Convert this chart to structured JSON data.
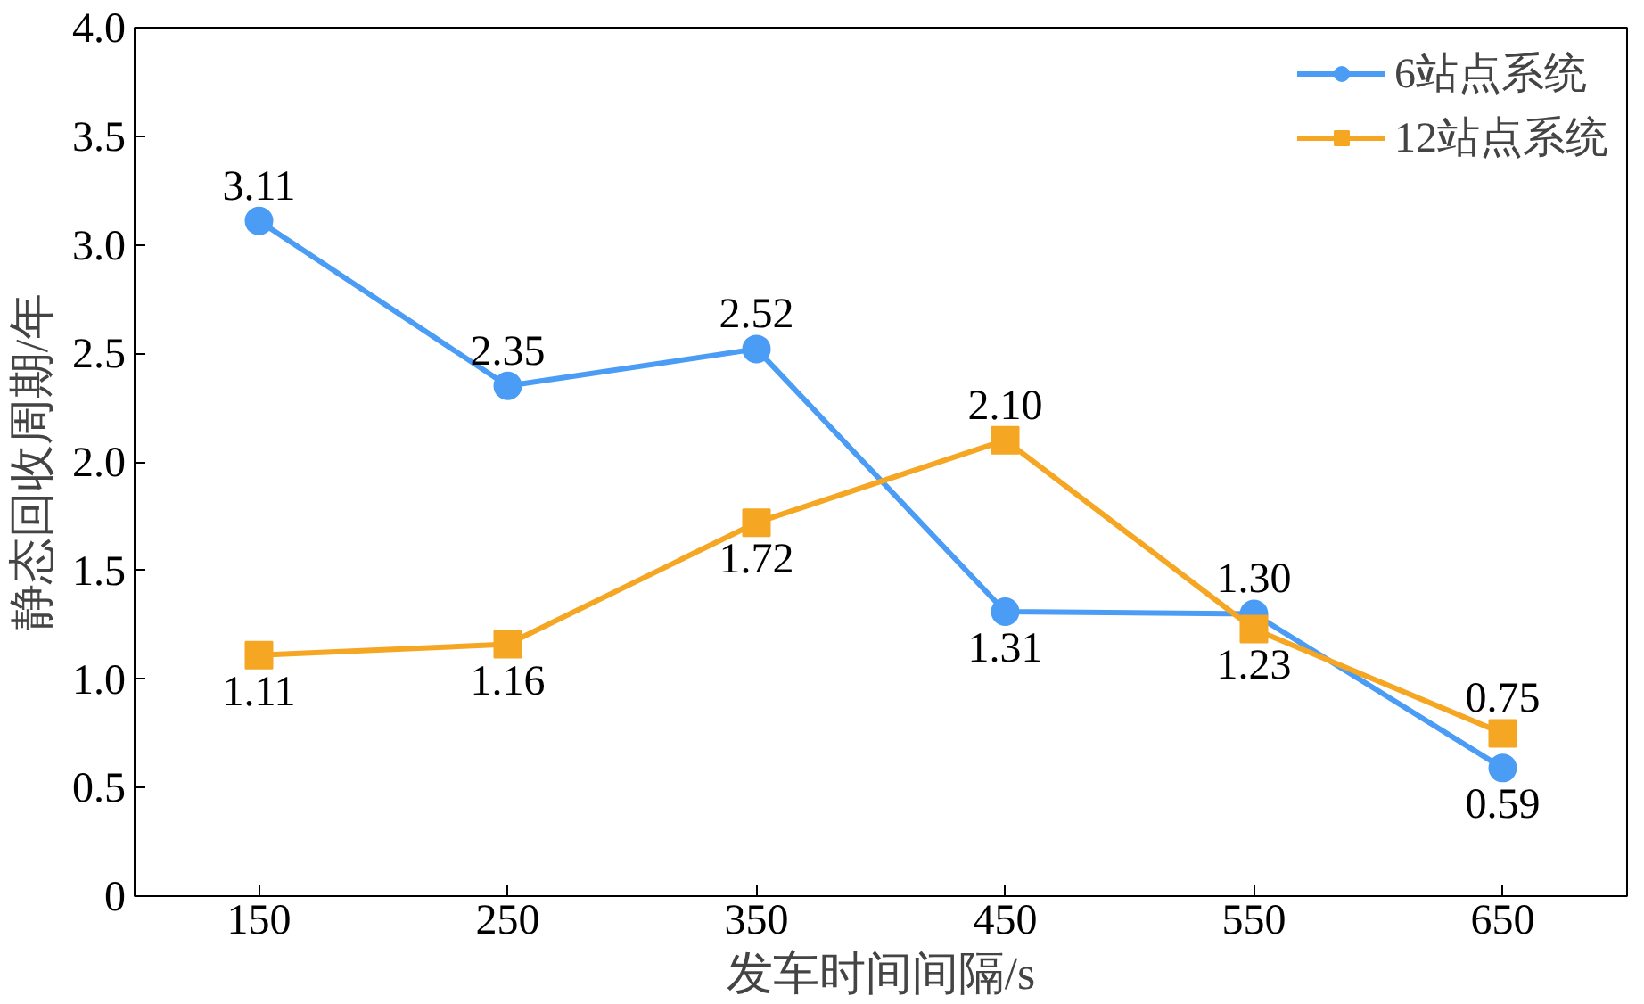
{
  "chart_data": {
    "type": "line",
    "xlabel": "发车时间间隔/s",
    "ylabel": "静态回收周期/年",
    "categories": [
      "150",
      "250",
      "350",
      "450",
      "550",
      "650"
    ],
    "series": [
      {
        "name": "6站点系统",
        "color": "#4b9cf5",
        "marker": "circle",
        "values": [
          3.11,
          2.35,
          2.52,
          1.31,
          1.3,
          0.59
        ],
        "value_labels": [
          "3.11",
          "2.35",
          "2.52",
          "1.31",
          "1.30",
          "0.59"
        ]
      },
      {
        "name": "12站点系统",
        "color": "#f5a623",
        "marker": "square",
        "values": [
          1.11,
          1.16,
          1.72,
          2.1,
          1.23,
          0.75
        ],
        "value_labels": [
          "1.11",
          "1.16",
          "1.72",
          "2.10",
          "1.23",
          "0.75"
        ]
      }
    ],
    "ylim": [
      0,
      4.0
    ],
    "yticks": [
      {
        "value": 0,
        "label": "0"
      },
      {
        "value": 0.5,
        "label": "0.5"
      },
      {
        "value": 1.0,
        "label": "1.0"
      },
      {
        "value": 1.5,
        "label": "1.5"
      },
      {
        "value": 2.0,
        "label": "2.0"
      },
      {
        "value": 2.5,
        "label": "2.5"
      },
      {
        "value": 3.0,
        "label": "3.0"
      },
      {
        "value": 3.5,
        "label": "3.5"
      },
      {
        "value": 4.0,
        "label": "4.0"
      }
    ],
    "grid": false,
    "legend": "top right"
  }
}
